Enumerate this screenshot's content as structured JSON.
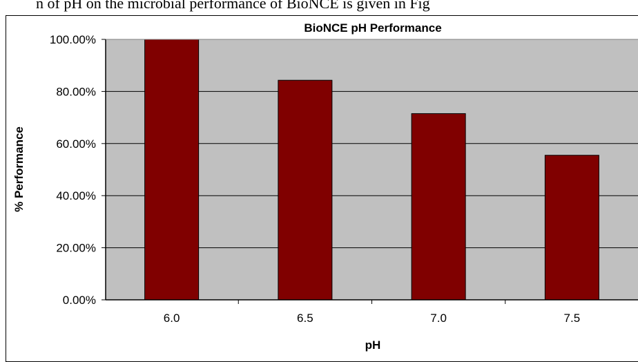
{
  "page_caption": "n of pH on the microbial performance of BioNCE is given in Fig",
  "chart_data": {
    "type": "bar",
    "title": "BioNCE pH Performance",
    "xlabel": "pH",
    "ylabel": "% Performance",
    "categories": [
      "6.0",
      "6.5",
      "7.0",
      "7.5"
    ],
    "values": [
      100,
      84.3,
      71.5,
      55.5
    ],
    "ylim": [
      0,
      100
    ],
    "yticks": [
      "0.00%",
      "20.00%",
      "40.00%",
      "60.00%",
      "80.00%",
      "100.00%"
    ],
    "grid": true,
    "legend": "none",
    "colors": {
      "bar": "#800000",
      "plot_bg": "#c0c0c0",
      "gridline": "#000000"
    }
  }
}
